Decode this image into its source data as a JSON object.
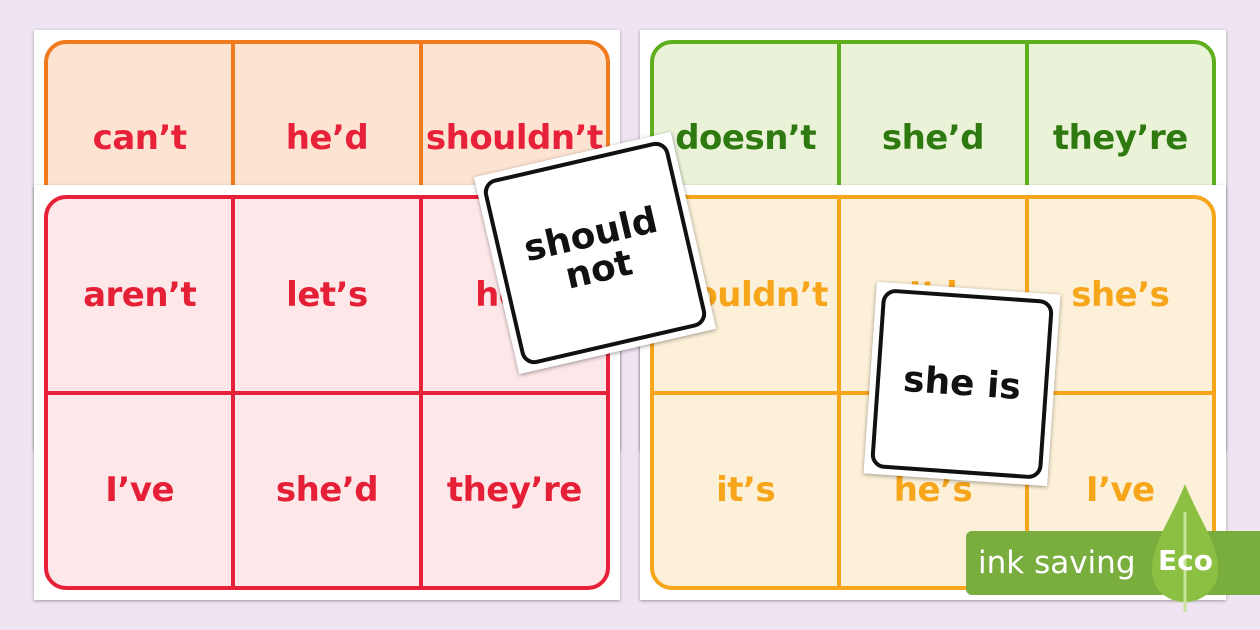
{
  "colors": {
    "background": "#efe4f1",
    "orange": "#f07a1e",
    "red": "#e8213a",
    "green": "#5fae1d",
    "amber": "#f7a51a",
    "eco": "#79ad3e"
  },
  "boards": [
    {
      "id": "orange",
      "border": "#f07a1e",
      "fill": "#fde3d2",
      "text": "#e8213a",
      "words": [
        "can’t",
        "he’d",
        "shouldn’t"
      ]
    },
    {
      "id": "red",
      "border": "#e8213a",
      "fill": "#fde7e9",
      "text": "#e41f36",
      "words": [
        "aren’t",
        "let’s",
        "he’s",
        "I’ve",
        "she’d",
        "they’re"
      ]
    },
    {
      "id": "green",
      "border": "#5fae1d",
      "fill": "#eaf2d8",
      "text": "#2f7a10",
      "words": [
        "doesn’t",
        "she’d",
        "they’re"
      ]
    },
    {
      "id": "amber",
      "border": "#f7a51a",
      "fill": "#fdf0d8",
      "text": "#f7a51a",
      "words": [
        "wouldn’t",
        "I’d",
        "she’s",
        "it’s",
        "he’s",
        "I’ve"
      ]
    }
  ],
  "cards": [
    {
      "text": "should not"
    },
    {
      "text": "she is"
    }
  ],
  "badge": {
    "label": "ink saving",
    "eco": "Eco",
    "icon": "leaf-icon"
  }
}
